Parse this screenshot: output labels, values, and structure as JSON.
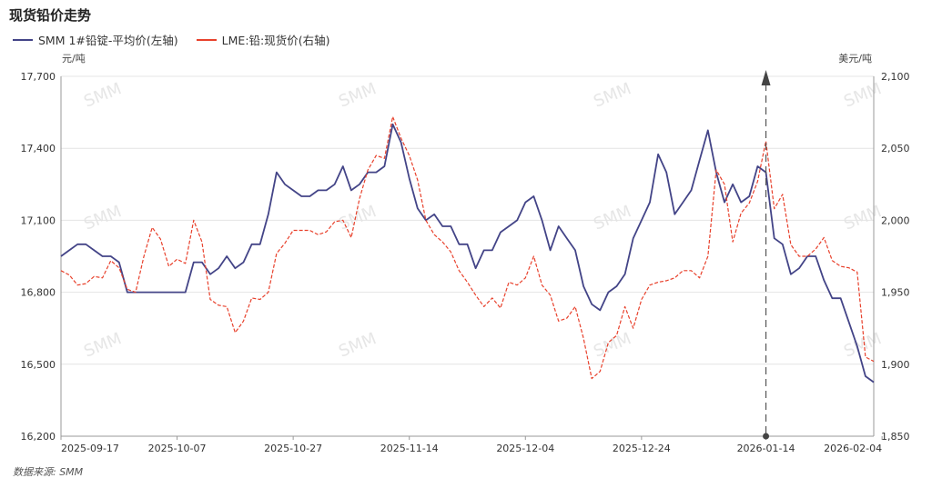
{
  "title": "现货铅价走势",
  "source": "数据来源:  SMM",
  "colors": {
    "left": "#434487",
    "right": "#e8412c"
  },
  "chart_data": {
    "type": "line",
    "title": "现货铅价走势",
    "ylabel_left": "元/吨",
    "ylabel_right": "美元/吨",
    "y_left_range": [
      16200,
      17700
    ],
    "y_left_ticks": [
      "16,200",
      "16,500",
      "16,800",
      "17,100",
      "17,400",
      "17,700"
    ],
    "y_right_range": [
      1850,
      2100
    ],
    "y_right_ticks": [
      "1,850",
      "1,900",
      "1,950",
      "2,000",
      "2,050",
      "2,100"
    ],
    "x_tick_labels": [
      "2025-09-17",
      "2025-10-07",
      "2025-10-27",
      "2025-11-14",
      "2025-12-04",
      "2025-12-24",
      "2026-01-14",
      "2026-02-04"
    ],
    "x_tick_index": [
      0,
      14,
      28,
      42,
      56,
      70,
      85,
      99
    ],
    "marker_index": 85,
    "grid": true,
    "legend_position": "top-left",
    "series": [
      {
        "name": "SMM 1#铅锭-平均价(左轴)",
        "axis": "left",
        "values": [
          16950,
          16975,
          17000,
          17000,
          16975,
          16950,
          16950,
          16925,
          16800,
          16800,
          16800,
          16800,
          16800,
          16800,
          16800,
          16800,
          16925,
          16925,
          16875,
          16900,
          16950,
          16900,
          16925,
          17000,
          17000,
          17125,
          17300,
          17250,
          17225,
          17200,
          17200,
          17225,
          17225,
          17250,
          17325,
          17225,
          17250,
          17300,
          17300,
          17325,
          17500,
          17425,
          17275,
          17150,
          17100,
          17125,
          17075,
          17075,
          17000,
          17000,
          16900,
          16975,
          16975,
          17050,
          17075,
          17100,
          17175,
          17200,
          17100,
          16975,
          17075,
          17025,
          16975,
          16825,
          16750,
          16725,
          16800,
          16825,
          16875,
          17025,
          17100,
          17175,
          17375,
          17300,
          17125,
          17175,
          17225,
          17350,
          17475,
          17300,
          17175,
          17250,
          17175,
          17200,
          17325,
          17300,
          17025,
          17000,
          16875,
          16900,
          16950,
          16950,
          16850,
          16775,
          16775,
          16675,
          16575,
          16450,
          16425
        ]
      },
      {
        "name": "LME:铅:现货价(右轴)",
        "axis": "right",
        "values": [
          1965,
          1962,
          1955,
          1956,
          1961,
          1960,
          1972,
          1967,
          1952,
          1950,
          1975,
          1995,
          1987,
          1968,
          1973,
          1970,
          2000,
          1985,
          1945,
          1941,
          1940,
          1922,
          1930,
          1946,
          1945,
          1950,
          1977,
          1984,
          1993,
          1993,
          1993,
          1990,
          1992,
          1999,
          2000,
          1988,
          2015,
          2035,
          2045,
          2043,
          2072,
          2057,
          2045,
          2028,
          2000,
          1990,
          1985,
          1978,
          1965,
          1957,
          1948,
          1940,
          1946,
          1939,
          1957,
          1955,
          1960,
          1975,
          1955,
          1948,
          1930,
          1932,
          1940,
          1918,
          1890,
          1895,
          1915,
          1920,
          1940,
          1925,
          1945,
          1955,
          1957,
          1958,
          1960,
          1965,
          1965,
          1960,
          1975,
          2035,
          2025,
          1985,
          2005,
          2012,
          2027,
          2055,
          2008,
          2018,
          1983,
          1975,
          1975,
          1980,
          1988,
          1972,
          1968,
          1967,
          1964,
          1905,
          1902
        ]
      }
    ]
  }
}
